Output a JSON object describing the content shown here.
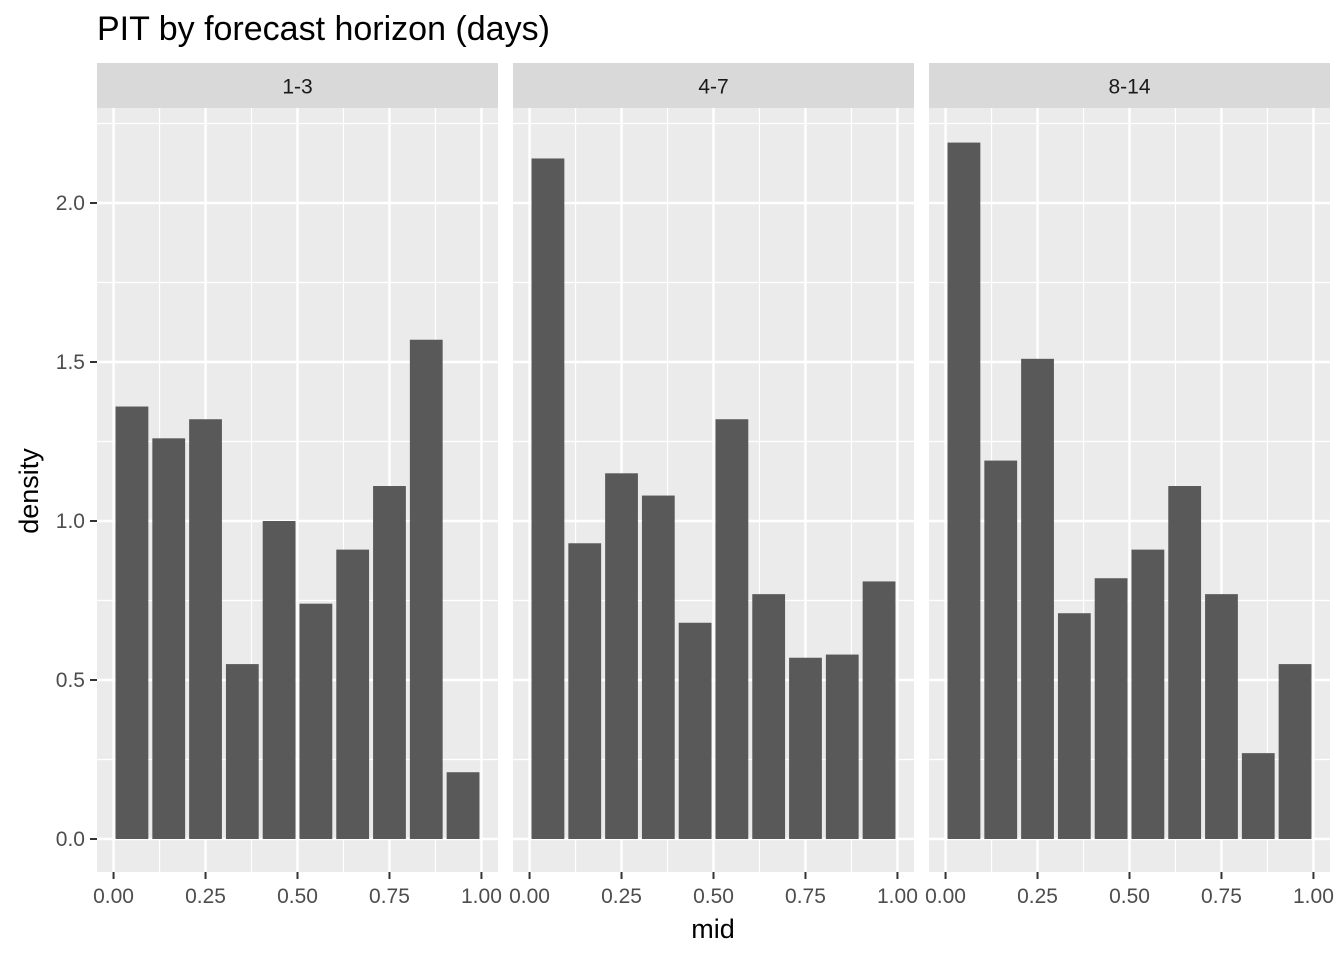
{
  "chart_data": {
    "type": "bar",
    "title": "PIT by forecast horizon (days)",
    "xlabel": "mid",
    "ylabel": "density",
    "xlim": [
      0,
      1
    ],
    "ylim": [
      0,
      2.2
    ],
    "x_ticks": [
      0,
      0.25,
      0.5,
      0.75,
      1
    ],
    "x_tick_labels": [
      "0.00",
      "0.25",
      "0.50",
      "0.75",
      "1.00"
    ],
    "y_ticks": [
      0,
      0.5,
      1,
      1.5,
      2
    ],
    "y_tick_labels": [
      "0.0",
      "0.5",
      "1.0",
      "1.5",
      "2.0"
    ],
    "bin_mids": [
      0.05,
      0.15,
      0.25,
      0.35,
      0.45,
      0.55,
      0.65,
      0.75,
      0.85,
      0.95
    ],
    "bin_width": 0.1,
    "grid": true,
    "facets": [
      {
        "label": "1-3",
        "values": [
          1.36,
          1.26,
          1.32,
          0.55,
          1.0,
          0.74,
          0.91,
          1.11,
          1.57,
          0.21
        ]
      },
      {
        "label": "4-7",
        "values": [
          2.14,
          0.93,
          1.15,
          1.08,
          0.68,
          1.32,
          0.77,
          0.57,
          0.58,
          0.81
        ]
      },
      {
        "label": "8-14",
        "values": [
          2.19,
          1.19,
          1.51,
          0.71,
          0.82,
          0.91,
          1.11,
          0.77,
          0.27,
          0.55
        ]
      }
    ]
  }
}
